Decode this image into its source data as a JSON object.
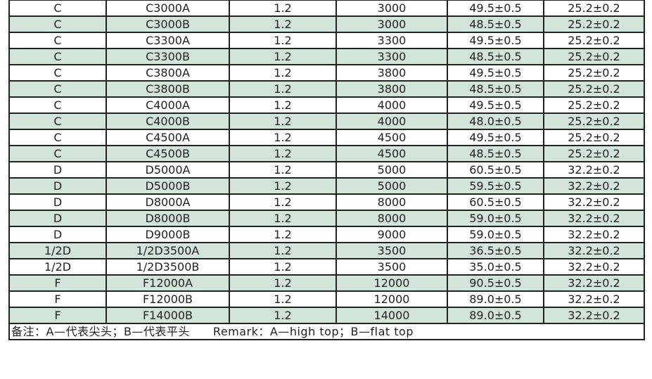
{
  "colors": {
    "row_alt": "#d3e4d8",
    "border": "#222222"
  },
  "rows": [
    [
      "C",
      "C3000A",
      "1.2",
      "3000",
      "49.5±0.5",
      "25.2±0.2"
    ],
    [
      "C",
      "C3000B",
      "1.2",
      "3000",
      "48.5±0.5",
      "25.2±0.2"
    ],
    [
      "C",
      "C3300A",
      "1.2",
      "3300",
      "49.5±0.5",
      "25.2±0.2"
    ],
    [
      "C",
      "C3300B",
      "1.2",
      "3300",
      "48.5±0.5",
      "25.2±0.2"
    ],
    [
      "C",
      "C3800A",
      "1.2",
      "3800",
      "49.5±0.5",
      "25.2±0.2"
    ],
    [
      "C",
      "C3800B",
      "1.2",
      "3800",
      "48.5±0.5",
      "25.2±0.2"
    ],
    [
      "C",
      "C4000A",
      "1.2",
      "4000",
      "49.5±0.5",
      "25.2±0.2"
    ],
    [
      "C",
      "C4000B",
      "1.2",
      "4000",
      "48.0±0.5",
      "25.2±0.2"
    ],
    [
      "C",
      "C4500A",
      "1.2",
      "4500",
      "49.5±0.5",
      "25.2±0.2"
    ],
    [
      "C",
      "C4500B",
      "1.2",
      "4500",
      "48.5±0.5",
      "25.2±0.2"
    ],
    [
      "D",
      "D5000A",
      "1.2",
      "5000",
      "60.5±0.5",
      "32.2±0.2"
    ],
    [
      "D",
      "D5000B",
      "1.2",
      "5000",
      "59.5±0.5",
      "32.2±0.2"
    ],
    [
      "D",
      "D8000A",
      "1.2",
      "8000",
      "60.5±0.5",
      "32.2±0.2"
    ],
    [
      "D",
      "D8000B",
      "1.2",
      "8000",
      "59.0±0.5",
      "32.2±0.2"
    ],
    [
      "D",
      "D9000B",
      "1.2",
      "9000",
      "59.0±0.5",
      "32.2±0.2"
    ],
    [
      "1/2D",
      "1/2D3500A",
      "1.2",
      "3500",
      "36.5±0.5",
      "32.2±0.2"
    ],
    [
      "1/2D",
      "1/2D3500B",
      "1.2",
      "3500",
      "35.0±0.5",
      "32.2±0.2"
    ],
    [
      "F",
      "F12000A",
      "1.2",
      "12000",
      "90.5±0.5",
      "32.2±0.2"
    ],
    [
      "F",
      "F12000B",
      "1.2",
      "12000",
      "89.0±0.5",
      "32.2±0.2"
    ],
    [
      "F",
      "F14000B",
      "1.2",
      "14000",
      "89.0±0.5",
      "32.2±0.2"
    ]
  ],
  "note": "备注：A—代表尖头；B—代表平头　　Remark：A—high top；B—flat top"
}
